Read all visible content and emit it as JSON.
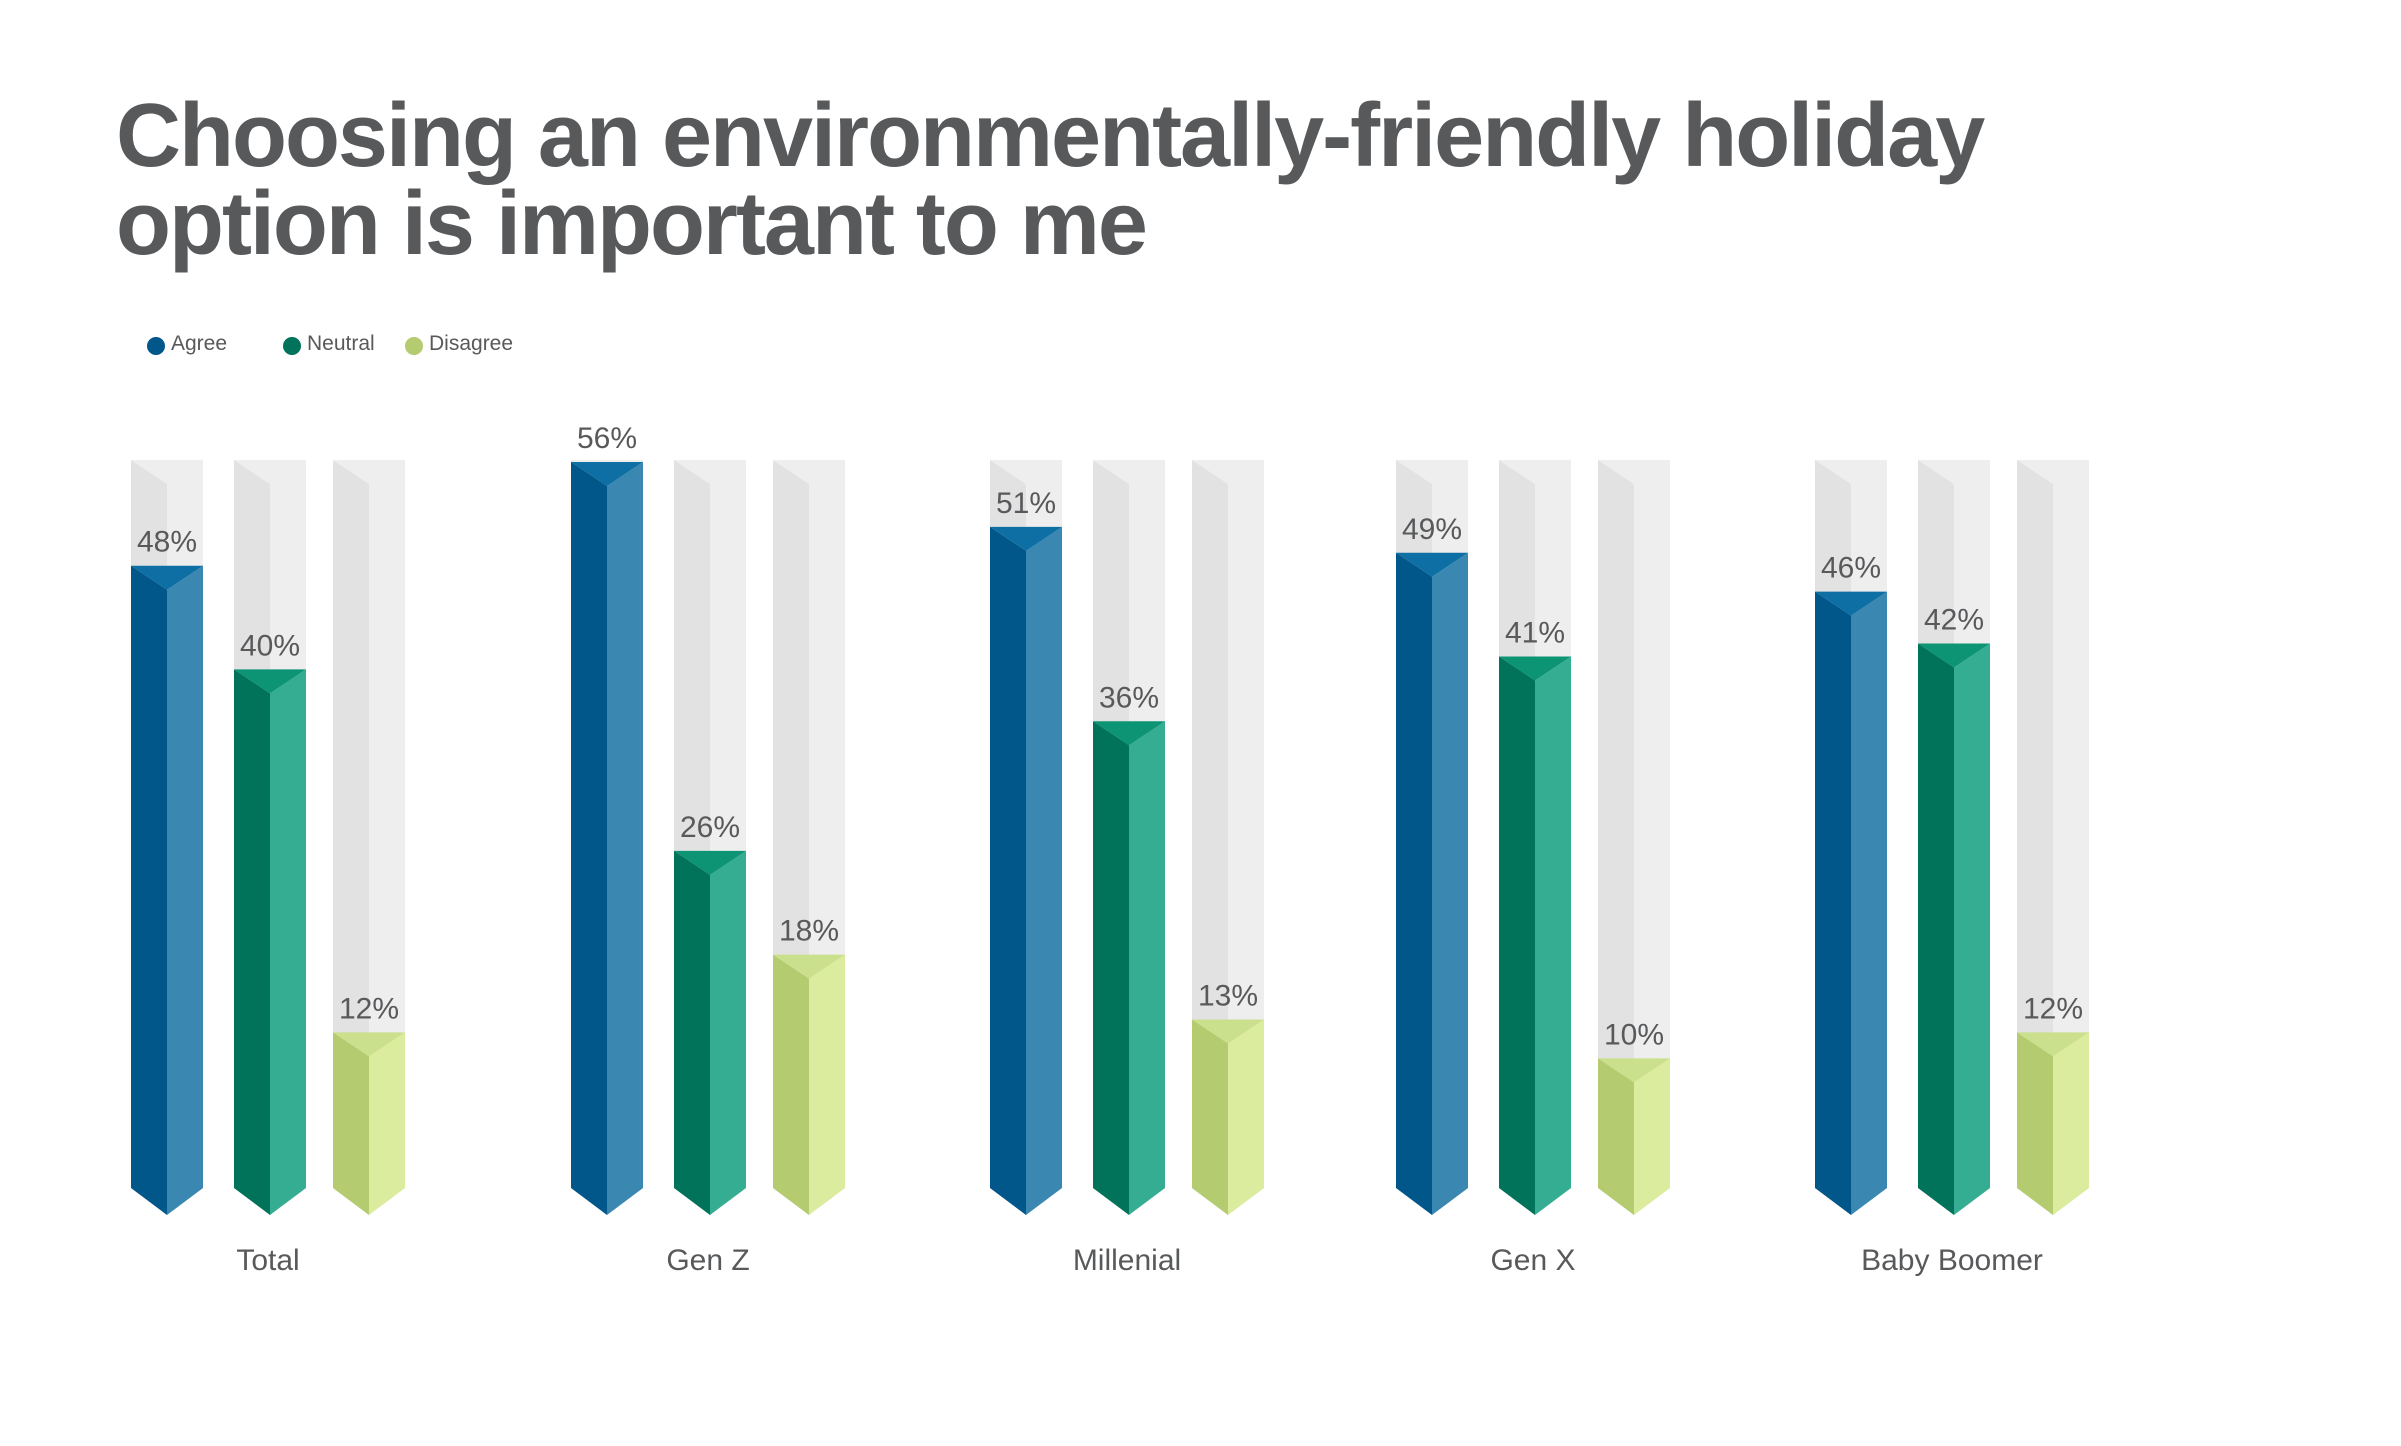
{
  "chart_data": {
    "type": "bar",
    "title_lines": [
      "Choosing an environmentally-friendly holiday",
      "option is important to me"
    ],
    "categories": [
      "Total",
      "Gen Z",
      "Millenial",
      "Gen X",
      "Baby Boomer"
    ],
    "series": [
      {
        "name": "Agree",
        "values": [
          48,
          56,
          51,
          49,
          46
        ]
      },
      {
        "name": "Neutral",
        "values": [
          40,
          26,
          36,
          41,
          42
        ]
      },
      {
        "name": "Disagree",
        "values": [
          12,
          18,
          13,
          10,
          12
        ]
      }
    ],
    "value_labels": [
      [
        "48%",
        "56%",
        "51%",
        "49%",
        "46%"
      ],
      [
        "40%",
        "26%",
        "36%",
        "41%",
        "42%"
      ],
      [
        "12%",
        "18%",
        "13%",
        "10%",
        "12%"
      ]
    ],
    "ylim": [
      0,
      56
    ],
    "legend_position": "top-left",
    "grid": false,
    "colors": {
      "agree": {
        "dark": "#01578a",
        "light": "#3a88b1",
        "cap": "#0d6fa4"
      },
      "neutral": {
        "dark": "#00735a",
        "light": "#35ad92",
        "cap": "#0c9474"
      },
      "disagree": {
        "dark": "#b4cb6f",
        "light": "#dcec9e",
        "cap": "#cbe08c"
      },
      "track": {
        "dark": "#e2e2e2",
        "light": "#eeeeee"
      },
      "text": "#58595b"
    }
  }
}
